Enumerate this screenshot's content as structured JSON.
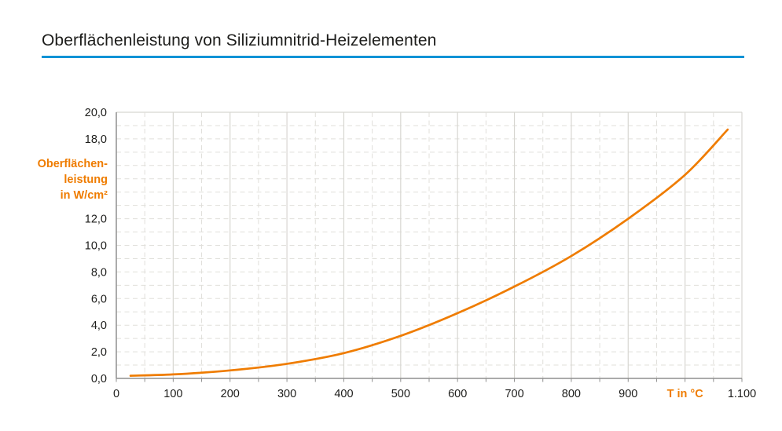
{
  "page": {
    "title": "Oberflächenleistung von Siliziumnitrid-Heizelementen"
  },
  "style": {
    "accent_orange": "#ef7c00",
    "accent_blue": "#0c93d6",
    "text_color": "#1d1d1b",
    "grid_major_color": "#d7d6d1",
    "grid_minor_color": "#e0dfda",
    "axis_color": "#8f8f8f",
    "background": "#ffffff"
  },
  "chart_data": {
    "type": "line",
    "title": "Oberflächenleistung von Siliziumnitrid-Heizelementen",
    "xlabel": "T in °C",
    "ylabel": "Oberflächenleistung in W/cm²",
    "xlim": [
      0,
      1100
    ],
    "ylim": [
      0,
      20
    ],
    "x_major_step": 100,
    "x_minor_step": 50,
    "y_minor_step": 1,
    "grid": "on",
    "legend": "none",
    "x_ticks": [
      {
        "value": 0,
        "label": "0",
        "is_axis_title": false
      },
      {
        "value": 100,
        "label": "100",
        "is_axis_title": false
      },
      {
        "value": 200,
        "label": "200",
        "is_axis_title": false
      },
      {
        "value": 300,
        "label": "300",
        "is_axis_title": false
      },
      {
        "value": 400,
        "label": "400",
        "is_axis_title": false
      },
      {
        "value": 500,
        "label": "500",
        "is_axis_title": false
      },
      {
        "value": 600,
        "label": "600",
        "is_axis_title": false
      },
      {
        "value": 700,
        "label": "700",
        "is_axis_title": false
      },
      {
        "value": 800,
        "label": "800",
        "is_axis_title": false
      },
      {
        "value": 900,
        "label": "900",
        "is_axis_title": false
      },
      {
        "value": 1000,
        "label": "T in °C",
        "is_axis_title": true
      },
      {
        "value": 1100,
        "label": "1.100",
        "is_axis_title": false
      }
    ],
    "y_ticks": [
      {
        "value": 0,
        "label": "0,0"
      },
      {
        "value": 2,
        "label": "2,0"
      },
      {
        "value": 4,
        "label": "4,0"
      },
      {
        "value": 6,
        "label": "6,0"
      },
      {
        "value": 8,
        "label": "8,0"
      },
      {
        "value": 10,
        "label": "10,0"
      },
      {
        "value": 12,
        "label": "12,0"
      },
      {
        "value": 18,
        "label": "18,0"
      },
      {
        "value": 20,
        "label": "20,0"
      }
    ],
    "y_axis_title": {
      "lines": [
        "Oberflächen-",
        "leistung",
        "in W/cm²"
      ],
      "anchor_value": 15
    },
    "series": [
      {
        "name": "Oberflächenleistung",
        "points": [
          [
            25,
            0.2
          ],
          [
            100,
            0.3
          ],
          [
            200,
            0.6
          ],
          [
            300,
            1.1
          ],
          [
            400,
            1.9
          ],
          [
            500,
            3.2
          ],
          [
            600,
            4.9
          ],
          [
            700,
            6.9
          ],
          [
            800,
            9.2
          ],
          [
            900,
            12.0
          ],
          [
            1000,
            15.3
          ],
          [
            1075,
            18.7
          ]
        ]
      }
    ]
  }
}
